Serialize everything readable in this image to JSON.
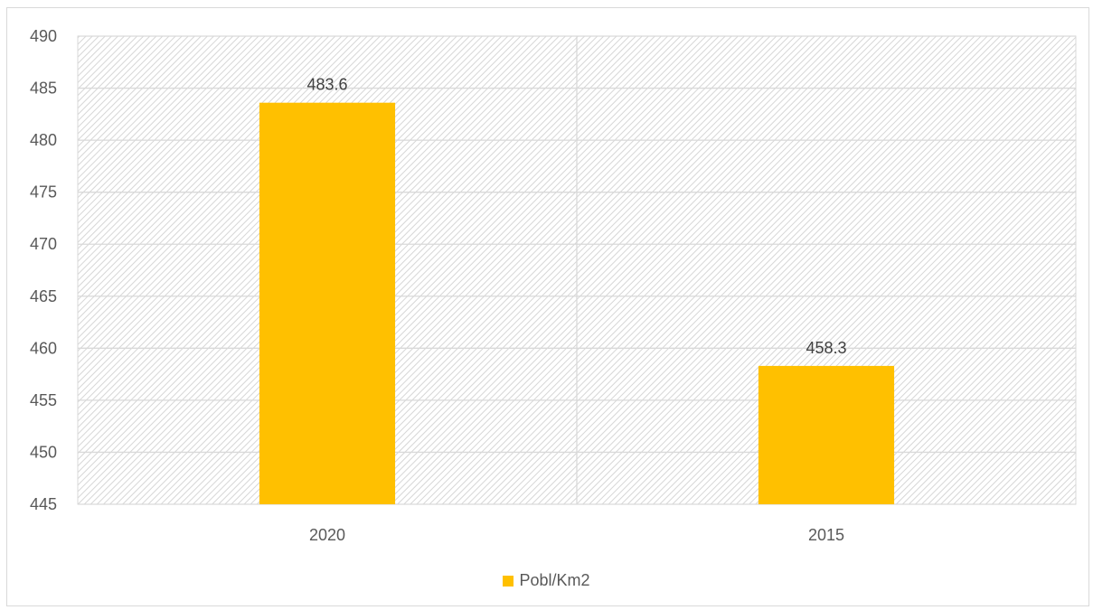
{
  "chart_data": {
    "type": "bar",
    "categories": [
      "2020",
      "2015"
    ],
    "series": [
      {
        "name": "Pobl/Km2",
        "values": [
          483.6,
          458.3
        ],
        "color": "#FFC000"
      }
    ],
    "data_labels": [
      "483.6",
      "458.3"
    ],
    "ylim": [
      445,
      490
    ],
    "y_step": 5,
    "grid": true,
    "plot_background": "hatched light gray diagonal pattern",
    "legend_position": "bottom",
    "xlabel": "",
    "ylabel": "",
    "title": ""
  },
  "legend": {
    "label": "Pobl/Km2",
    "color": "#FFC000"
  }
}
